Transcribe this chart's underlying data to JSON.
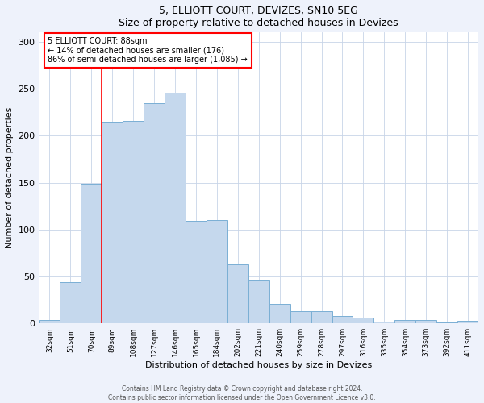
{
  "title": "5, ELLIOTT COURT, DEVIZES, SN10 5EG",
  "subtitle": "Size of property relative to detached houses in Devizes",
  "xlabel": "Distribution of detached houses by size in Devizes",
  "ylabel": "Number of detached properties",
  "bar_color": "#c5d8ed",
  "bar_edge_color": "#7aafd4",
  "categories": [
    "32sqm",
    "51sqm",
    "70sqm",
    "89sqm",
    "108sqm",
    "127sqm",
    "146sqm",
    "165sqm",
    "184sqm",
    "202sqm",
    "221sqm",
    "240sqm",
    "259sqm",
    "278sqm",
    "297sqm",
    "316sqm",
    "335sqm",
    "354sqm",
    "373sqm",
    "392sqm",
    "411sqm"
  ],
  "values": [
    4,
    44,
    149,
    215,
    216,
    235,
    246,
    109,
    110,
    63,
    46,
    21,
    13,
    13,
    8,
    6,
    2,
    4,
    4,
    1,
    3
  ],
  "ylim": [
    0,
    310
  ],
  "yticks": [
    0,
    50,
    100,
    150,
    200,
    250,
    300
  ],
  "property_line_x": 2.5,
  "property_line_label": "5 ELLIOTT COURT: 88sqm",
  "annotation_line1": "← 14% of detached houses are smaller (176)",
  "annotation_line2": "86% of semi-detached houses are larger (1,085) →",
  "footer_line1": "Contains HM Land Registry data © Crown copyright and database right 2024.",
  "footer_line2": "Contains public sector information licensed under the Open Government Licence v3.0.",
  "background_color": "#eef2fb",
  "plot_bg_color": "#ffffff",
  "grid_color": "#c8d4e8"
}
